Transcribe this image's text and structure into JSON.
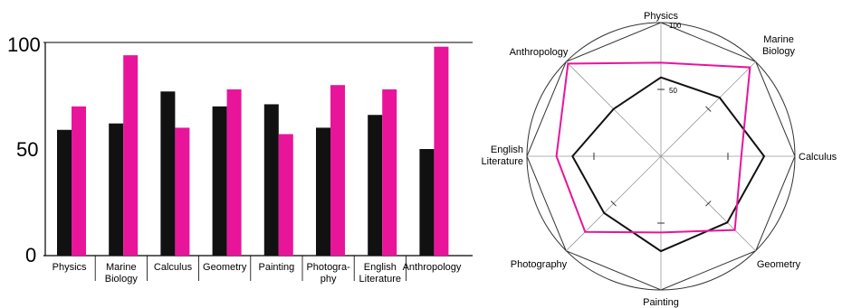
{
  "colors": {
    "series_a": "#111111",
    "series_b": "#e8159b",
    "axis": "#000000",
    "grid": "#999999",
    "frame": "#333333"
  },
  "chart_data": [
    {
      "type": "bar",
      "categories": [
        "Physics",
        "Marine|Biology",
        "Calculus",
        "Geometry",
        "Painting",
        "Photogra-|phy",
        "English|Literature",
        "Anthropology"
      ],
      "series": [
        {
          "values": [
            59,
            62,
            77,
            70,
            71,
            60,
            66,
            50
          ]
        },
        {
          "values": [
            70,
            94,
            60,
            78,
            57,
            80,
            78,
            98
          ]
        }
      ],
      "ylim": [
        0,
        100
      ],
      "y_ticks": [
        "0",
        "50",
        "100"
      ],
      "grid": false,
      "title": "",
      "xlabel": "",
      "ylabel": ""
    },
    {
      "type": "radar",
      "axes": [
        "Physics",
        "Marine|Biology",
        "Calculus",
        "Geometry",
        "Painting",
        "Photography",
        "English|Literature",
        "Anthropology"
      ],
      "series": [
        {
          "values": [
            59,
            62,
            77,
            70,
            71,
            60,
            66,
            50
          ]
        },
        {
          "values": [
            70,
            94,
            60,
            78,
            57,
            80,
            78,
            98
          ]
        }
      ],
      "rlim": [
        0,
        100
      ],
      "r_tick_labels": [
        "50",
        "100"
      ],
      "title": ""
    }
  ]
}
